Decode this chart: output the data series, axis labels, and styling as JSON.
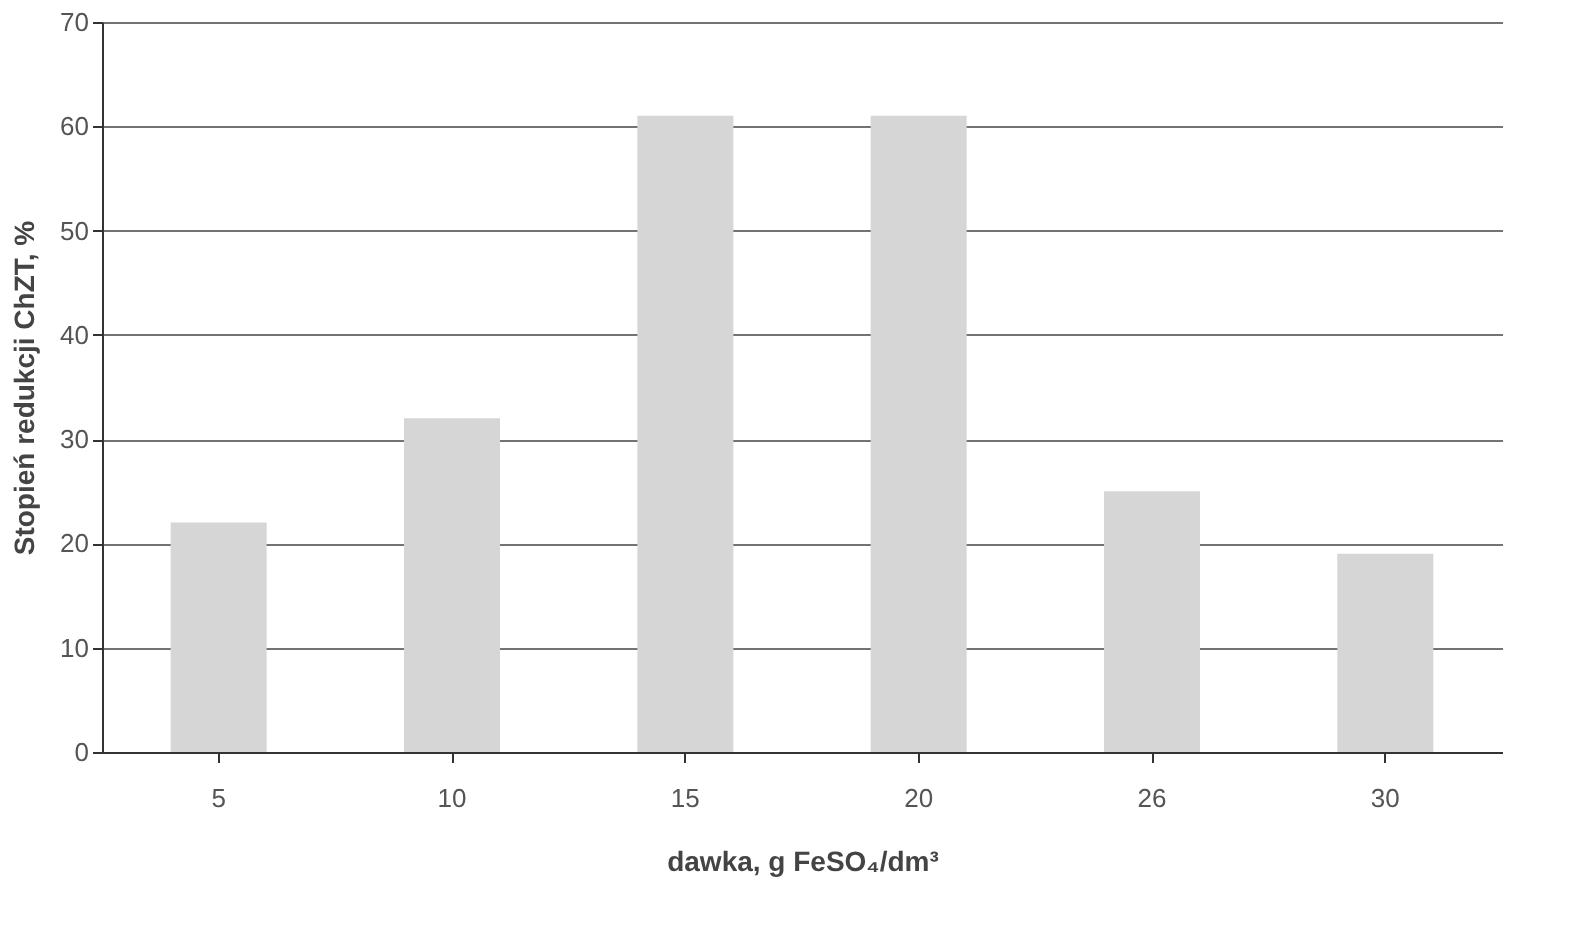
{
  "chart_data": {
    "type": "bar",
    "xlabel": "dawka, g FeSO₄/dm³",
    "ylabel": "Stopień redukcji ChZT, %",
    "categories": [
      "5",
      "10",
      "15",
      "20",
      "26",
      "30"
    ],
    "values": [
      22,
      32,
      61,
      61,
      25,
      19
    ],
    "color": "#d6d6d6",
    "ylim": [
      0,
      70
    ],
    "yticks": [
      0,
      10,
      20,
      30,
      40,
      50,
      60,
      70
    ],
    "grid": "y"
  }
}
